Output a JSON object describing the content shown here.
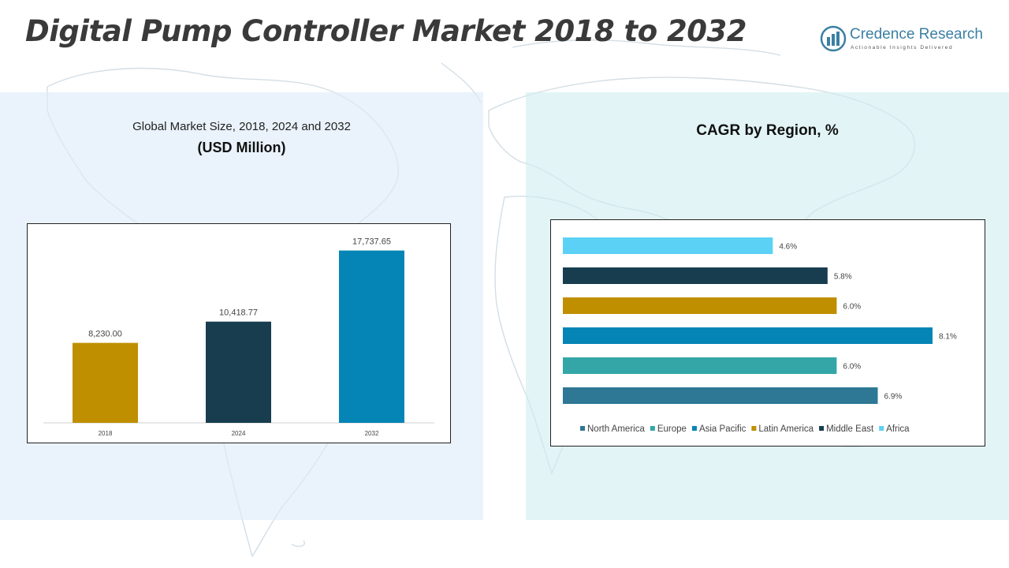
{
  "header": {
    "title": "Digital Pump Controller Market 2018 to 2032",
    "logo_name": "Credence Research",
    "logo_tagline": "Actionable Insights Delivered"
  },
  "colors": {
    "gold": "#BF8F00",
    "dark_teal": "#173D4F",
    "blue": "#0585B5",
    "teal": "#34A6A8",
    "steel_blue": "#2E7895",
    "sky": "#5BD1F5"
  },
  "chart_data": [
    {
      "type": "bar",
      "title": "Global Market Size, 2018, 2024 and 2032",
      "subtitle": "(USD Million)",
      "categories": [
        "2018",
        "2024",
        "2032"
      ],
      "values": [
        8230.0,
        10418.77,
        17737.65
      ],
      "value_labels": [
        "8,230.00",
        "10,418.77",
        "17,737.65"
      ],
      "bar_colors": [
        "#BF8F00",
        "#173D4F",
        "#0585B5"
      ],
      "ylim": [
        0,
        19000
      ],
      "grid": false
    },
    {
      "type": "bar",
      "orientation": "horizontal",
      "title": "CAGR by Region, %",
      "categories": [
        "North America",
        "Europe",
        "Asia Pacific",
        "Latin America",
        "Middle East",
        "Africa"
      ],
      "values": [
        6.9,
        6.0,
        8.1,
        6.0,
        5.8,
        4.6
      ],
      "value_labels": [
        "6.9%",
        "6.0%",
        "8.1%",
        "6.0%",
        "5.8%",
        "4.6%"
      ],
      "colors": [
        "#2E7895",
        "#34A6A8",
        "#0585B5",
        "#BF8F00",
        "#173D4F",
        "#5BD1F5"
      ],
      "xlim": [
        0,
        8.1
      ],
      "legend": "bottom",
      "grid": false
    }
  ]
}
